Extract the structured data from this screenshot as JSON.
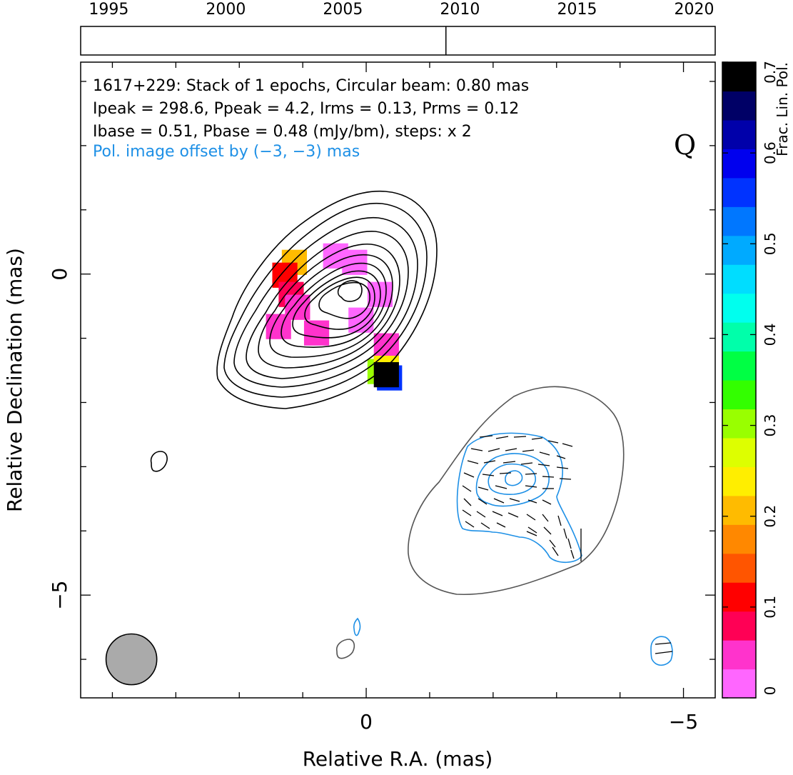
{
  "chart_data": {
    "type": "contour",
    "header_lines": [
      "1617+229: Stack of 1 epochs, Circular beam: 0.80 mas",
      "Ipeak = 298.6, Ppeak = 4.2, Irms = 0.13, Prms = 0.12",
      "Ibase = 0.51, Pbase = 0.48 (mJy/bm), steps: x 2"
    ],
    "offset_note": "Pol. image offset by (−3, −3) mas",
    "quality_flag": "Q",
    "xlabel": "Relative R.A. (mas)",
    "ylabel": "Relative Declination (mas)",
    "xlim": [
      4.5,
      -5.5
    ],
    "ylim": [
      -6.6,
      3.3
    ],
    "x_ticks": [
      {
        "value": 0,
        "label": "0"
      },
      {
        "value": -5,
        "label": "−5"
      }
    ],
    "y_ticks": [
      {
        "value": 0,
        "label": "0"
      },
      {
        "value": -5,
        "label": "−5"
      }
    ],
    "beam": {
      "x": 3.7,
      "y": -6.0,
      "diameter_mas": 0.8,
      "fill": "#aaaaaa"
    },
    "timeline": {
      "years": [
        "1995",
        "2000",
        "2005",
        "2010",
        "2015",
        "2020"
      ],
      "year_values": [
        1995,
        2000,
        2005,
        2010,
        2015,
        2020
      ],
      "range": [
        1993.8,
        2020.9
      ],
      "epochs": [
        2009.4
      ]
    },
    "colorbar": {
      "label": "Frac. Lin. Pol.",
      "range": [
        0,
        0.7
      ],
      "ticks": [
        "0",
        "0.1",
        "0.2",
        "0.3",
        "0.4",
        "0.5",
        "0.6",
        "0.7"
      ],
      "tick_values": [
        0,
        0.1,
        0.2,
        0.3,
        0.4,
        0.5,
        0.6,
        0.7
      ],
      "colors": [
        "#ff66ff",
        "#ff33cc",
        "#ff0055",
        "#ff0000",
        "#ff5500",
        "#ff8800",
        "#ffbb00",
        "#ffee00",
        "#ddff00",
        "#99ff00",
        "#33ff00",
        "#00ff44",
        "#00ffaa",
        "#00ffee",
        "#00ddff",
        "#00aaff",
        "#0077ff",
        "#0033ff",
        "#0000ee",
        "#0000aa",
        "#000066",
        "#000000"
      ]
    },
    "stokes_i_contours": {
      "color": "#000000",
      "peak": [
        0.2,
        -0.2
      ]
    },
    "pol_contours": {
      "color": "#1e90e6",
      "peak": [
        -2.4,
        -3.3
      ]
    },
    "total_outline": {
      "color": "#555555"
    },
    "frac_pol_pixels": [
      {
        "x": 1.15,
        "y": 0.2,
        "v": 0.22
      },
      {
        "x": 1.3,
        "y": 0.0,
        "v": 0.12
      },
      {
        "x": 1.2,
        "y": -0.3,
        "v": 0.09
      },
      {
        "x": 1.4,
        "y": -0.8,
        "v": 0.05
      },
      {
        "x": 1.1,
        "y": -0.5,
        "v": 0.04
      },
      {
        "x": 0.8,
        "y": -0.9,
        "v": 0.04
      },
      {
        "x": 0.5,
        "y": 0.3,
        "v": 0.02
      },
      {
        "x": 0.2,
        "y": 0.2,
        "v": 0.01
      },
      {
        "x": -0.2,
        "y": -0.3,
        "v": 0.01
      },
      {
        "x": 0.1,
        "y": -0.7,
        "v": 0.01
      },
      {
        "x": -0.3,
        "y": -1.1,
        "v": 0.04
      },
      {
        "x": -0.2,
        "y": -1.5,
        "v": 0.3
      },
      {
        "x": -0.3,
        "y": -1.45,
        "v": 0.25
      },
      {
        "x": -0.35,
        "y": -1.6,
        "v": 0.55
      },
      {
        "x": -0.3,
        "y": -1.55,
        "v": 0.7
      }
    ]
  }
}
